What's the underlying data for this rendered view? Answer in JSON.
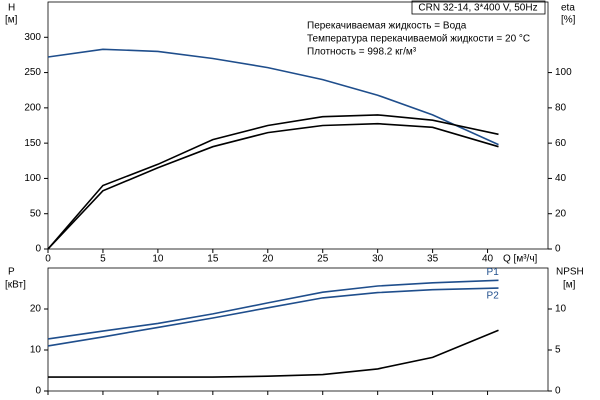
{
  "chart_data": [
    {
      "type": "line",
      "title": "CRN 32-14, 3*400 V, 50Hz",
      "annotations": [
        "Перекачиваемая жидкость = Вода",
        "Температура перекачиваемой жидкости = 20 °C",
        "Плотность = 998.2 кг/м³"
      ],
      "ylabel": "H",
      "yunit": "[м]",
      "y2label": "eta",
      "y2unit": "[%]",
      "xlabel": "Q [м³/ч]",
      "x": [
        0,
        5,
        10,
        15,
        20,
        25,
        30,
        35,
        41
      ],
      "xlim": [
        0,
        45.5
      ],
      "xticks": [
        0,
        5,
        10,
        15,
        20,
        25,
        30,
        35,
        40
      ],
      "ylim": [
        0,
        350
      ],
      "yticks": [
        0,
        50,
        100,
        150,
        200,
        250,
        300
      ],
      "y2lim": [
        0,
        140
      ],
      "y2ticks": [
        0,
        20,
        40,
        60,
        80,
        100
      ],
      "series": [
        {
          "color": "#1f4e8c",
          "values": [
            272,
            283,
            280,
            270,
            257,
            240,
            218,
            190,
            148
          ]
        },
        {
          "color": "#000000",
          "axis": "y2",
          "values": [
            0,
            36,
            48,
            62,
            70,
            75,
            76,
            73,
            65
          ]
        },
        {
          "color": "#000000",
          "axis": "y2",
          "values": [
            0,
            33,
            46,
            58,
            66,
            70,
            71,
            69,
            58
          ]
        }
      ]
    },
    {
      "type": "line",
      "ylabel": "P",
      "yunit": "[кВт]",
      "y2label": "NPSH",
      "y2unit": "[м]",
      "x": [
        0,
        5,
        10,
        15,
        20,
        25,
        30,
        35,
        41
      ],
      "xlim": [
        0,
        45.5
      ],
      "xticks": [
        0,
        5,
        10,
        15,
        20,
        25,
        30,
        35,
        40
      ],
      "ylim": [
        0,
        30
      ],
      "yticks": [
        0,
        10,
        20
      ],
      "y2lim": [
        0,
        15
      ],
      "y2ticks": [
        0,
        5,
        10
      ],
      "series": [
        {
          "name": "P1",
          "color": "#1f4e8c",
          "values": [
            12.7,
            14.6,
            16.5,
            18.8,
            21.5,
            24.1,
            25.6,
            26.4,
            27
          ]
        },
        {
          "name": "P2",
          "color": "#1f4e8c",
          "values": [
            11,
            13.2,
            15.5,
            17.8,
            20.3,
            22.7,
            24,
            24.7,
            25.1
          ]
        },
        {
          "color": "#000000",
          "axis": "y2",
          "values": [
            1.7,
            1.7,
            1.7,
            1.7,
            1.8,
            2.0,
            2.7,
            4.1,
            7.4
          ]
        }
      ]
    }
  ]
}
